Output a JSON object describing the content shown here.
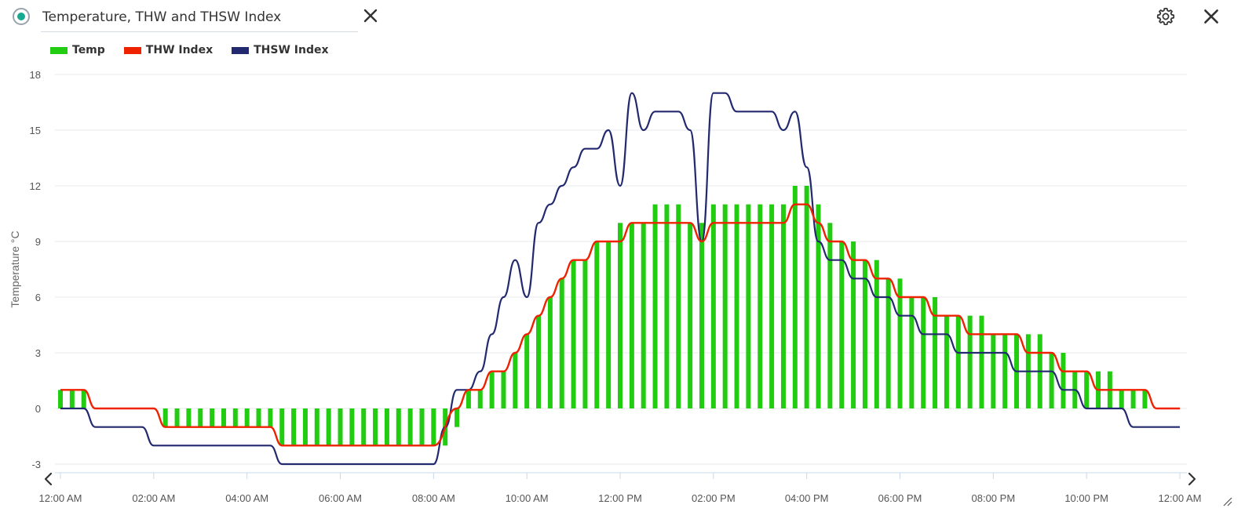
{
  "header": {
    "title": "Temperature, THW and THSW Index",
    "radio_icon": "radio-selected-icon",
    "clear_icon": "close-icon",
    "settings_icon": "gear-icon",
    "close_icon": "close-icon"
  },
  "colors": {
    "temp": "#22cc11",
    "thw": "#ee2200",
    "thsw": "#23296e",
    "grid": "#e4e8ec",
    "axis": "#c8d8e8"
  },
  "navigation": {
    "prev_icon": "chevron-left-icon",
    "next_icon": "chevron-right-icon"
  },
  "chart_data": {
    "type": "bar",
    "ylabel": "Temperature °C",
    "ylim": [
      -3,
      18
    ],
    "y_ticks": [
      -3,
      0,
      3,
      6,
      9,
      12,
      15,
      18
    ],
    "x_range_hours": [
      0,
      24
    ],
    "x_tick_labels": [
      "12:00 AM",
      "02:00 AM",
      "04:00 AM",
      "06:00 AM",
      "08:00 AM",
      "10:00 AM",
      "12:00 PM",
      "02:00 PM",
      "04:00 PM",
      "06:00 PM",
      "08:00 PM",
      "10:00 PM",
      "12:00 AM"
    ],
    "grid": true,
    "legend_position": "top-left",
    "series": [
      {
        "name": "Temp",
        "type": "bar",
        "x": [
          0,
          0.25,
          0.5,
          2.25,
          2.5,
          2.75,
          3,
          3.25,
          3.5,
          3.75,
          4,
          4.25,
          4.5,
          4.75,
          5,
          5.25,
          5.5,
          5.75,
          6,
          6.25,
          6.5,
          6.75,
          7,
          7.25,
          7.5,
          7.75,
          8,
          8.25,
          8.5,
          8.75,
          9,
          9.25,
          9.5,
          9.75,
          10,
          10.25,
          10.5,
          10.75,
          11,
          11.25,
          11.5,
          11.75,
          12,
          12.25,
          12.5,
          12.75,
          13,
          13.25,
          13.5,
          13.75,
          14,
          14.25,
          14.5,
          14.75,
          15,
          15.25,
          15.5,
          15.75,
          16,
          16.25,
          16.5,
          16.75,
          17,
          17.25,
          17.5,
          17.75,
          18,
          18.25,
          18.5,
          18.75,
          19,
          19.25,
          19.5,
          19.75,
          20,
          20.25,
          20.5,
          20.75,
          21,
          21.25,
          21.5,
          21.75,
          22,
          22.25,
          22.5,
          22.75,
          23,
          23.25
        ],
        "values": [
          1,
          1,
          1,
          -1,
          -1,
          -1,
          -1,
          -1,
          -1,
          -1,
          -1,
          -1,
          -1,
          -2,
          -2,
          -2,
          -2,
          -2,
          -2,
          -2,
          -2,
          -2,
          -2,
          -2,
          -2,
          -2,
          -2,
          -2,
          -1,
          1,
          1,
          2,
          2,
          3,
          4,
          5,
          6,
          7,
          8,
          8,
          9,
          9,
          10,
          10,
          10,
          11,
          11,
          11,
          10,
          10,
          11,
          11,
          11,
          11,
          11,
          11,
          11,
          12,
          12,
          11,
          10,
          9,
          9,
          8,
          8,
          7,
          7,
          6,
          6,
          6,
          5,
          5,
          5,
          5,
          4,
          4,
          4,
          4,
          4,
          3,
          3,
          2,
          2,
          2,
          2,
          1,
          1,
          1
        ]
      },
      {
        "name": "THW Index",
        "type": "line",
        "x": [
          0,
          0.5,
          0.75,
          2,
          2.25,
          4.5,
          4.75,
          8,
          8.5,
          8.75,
          9,
          9.25,
          9.5,
          9.75,
          10,
          10.25,
          10.5,
          10.75,
          11,
          11.25,
          11.5,
          11.75,
          12,
          12.25,
          12.5,
          13.5,
          13.75,
          14,
          14.25,
          15.5,
          15.75,
          16,
          16.25,
          16.5,
          16.75,
          17,
          17.25,
          17.5,
          17.75,
          18,
          18.25,
          18.5,
          18.75,
          19,
          19.25,
          19.5,
          19.75,
          20,
          20.25,
          20.5,
          20.75,
          21,
          21.25,
          21.5,
          21.75,
          22,
          22.25,
          22.5,
          22.75,
          23,
          23.25,
          23.5,
          24
        ],
        "values": [
          1,
          1,
          0,
          0,
          -1,
          -1,
          -2,
          -2,
          0,
          1,
          1,
          2,
          2,
          3,
          4,
          5,
          6,
          7,
          8,
          8,
          9,
          9,
          9,
          10,
          10,
          10,
          9,
          10,
          10,
          10,
          11,
          11,
          10,
          9,
          9,
          8,
          8,
          7,
          7,
          6,
          6,
          6,
          5,
          5,
          5,
          4,
          4,
          4,
          4,
          4,
          3,
          3,
          3,
          2,
          2,
          2,
          1,
          1,
          1,
          1,
          1,
          0,
          0
        ]
      },
      {
        "name": "THSW Index",
        "type": "line",
        "x": [
          0,
          0.5,
          0.75,
          1.75,
          2,
          4.5,
          4.75,
          8,
          8.25,
          8.5,
          8.75,
          9,
          9.25,
          9.5,
          9.75,
          10,
          10.25,
          10.5,
          10.75,
          11,
          11.25,
          11.5,
          11.75,
          12,
          12.25,
          12.5,
          12.75,
          13.25,
          13.5,
          13.75,
          14,
          14.25,
          14.5,
          15,
          15.25,
          15.5,
          15.75,
          16,
          16.25,
          16.5,
          16.75,
          17,
          17.25,
          17.5,
          17.75,
          18,
          18.25,
          18.5,
          18.75,
          19,
          19.25,
          19.5,
          19.75,
          20,
          20.25,
          20.5,
          20.75,
          21,
          21.25,
          21.5,
          21.75,
          22,
          22.25,
          22.5,
          22.75,
          23,
          23.25,
          23.5,
          24
        ],
        "values": [
          0,
          0,
          -1,
          -1,
          -2,
          -2,
          -3,
          -3,
          -1,
          1,
          1,
          2,
          4,
          6,
          8,
          6,
          10,
          11,
          12,
          13,
          14,
          14,
          15,
          12,
          17,
          15,
          16,
          16,
          15,
          9,
          17,
          17,
          16,
          16,
          16,
          15,
          16,
          13,
          9,
          8,
          8,
          7,
          7,
          6,
          6,
          5,
          5,
          4,
          4,
          4,
          3,
          3,
          3,
          3,
          3,
          2,
          2,
          2,
          2,
          1,
          1,
          0,
          0,
          0,
          0,
          -1,
          -1,
          -1,
          -1
        ]
      }
    ]
  }
}
